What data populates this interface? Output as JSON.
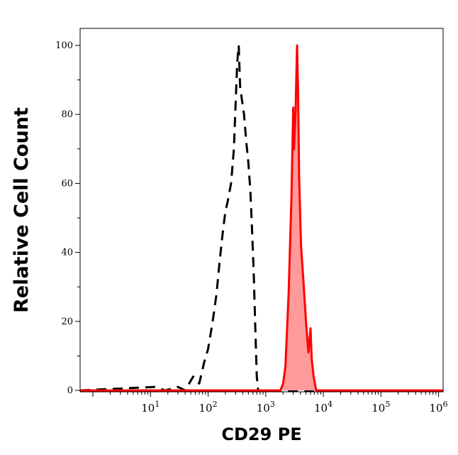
{
  "chart_data": {
    "type": "area",
    "xlabel": "CD29 PE",
    "ylabel": "Relative Cell Count",
    "xscale": "log",
    "xlim": [
      0.6,
      1200000
    ],
    "ylim": [
      0,
      100
    ],
    "x_ticks": [
      {
        "base": "10",
        "exp": "1"
      },
      {
        "base": "10",
        "exp": "2"
      },
      {
        "base": "10",
        "exp": "3"
      },
      {
        "base": "10",
        "exp": "4"
      },
      {
        "base": "10",
        "exp": "5"
      },
      {
        "base": "10",
        "exp": "6"
      }
    ],
    "y_ticks": [
      "0",
      "20",
      "40",
      "60",
      "80",
      "100"
    ],
    "y_values": [
      0,
      20,
      40,
      60,
      80,
      100
    ],
    "series": [
      {
        "style": "dashed",
        "color": "#000000",
        "fill": "none",
        "points": [
          [
            0.6,
            0
          ],
          [
            12,
            1
          ],
          [
            18,
            0
          ],
          [
            30,
            1
          ],
          [
            40,
            0
          ],
          [
            55,
            4
          ],
          [
            70,
            2
          ],
          [
            85,
            8
          ],
          [
            100,
            12
          ],
          [
            120,
            20
          ],
          [
            140,
            28
          ],
          [
            160,
            38
          ],
          [
            180,
            46
          ],
          [
            200,
            52
          ],
          [
            220,
            55
          ],
          [
            250,
            60
          ],
          [
            280,
            70
          ],
          [
            300,
            83
          ],
          [
            320,
            95
          ],
          [
            340,
            100
          ],
          [
            360,
            88
          ],
          [
            380,
            85
          ],
          [
            420,
            80
          ],
          [
            460,
            72
          ],
          [
            500,
            66
          ],
          [
            540,
            58
          ],
          [
            580,
            46
          ],
          [
            620,
            34
          ],
          [
            660,
            18
          ],
          [
            700,
            4
          ],
          [
            740,
            0
          ],
          [
            1200000,
            0
          ]
        ]
      },
      {
        "style": "solid",
        "color": "#ff0000",
        "fill": "#ff9a9a",
        "points": [
          [
            0.6,
            0
          ],
          [
            1800,
            0
          ],
          [
            2000,
            2
          ],
          [
            2200,
            7
          ],
          [
            2500,
            28
          ],
          [
            2800,
            56
          ],
          [
            3000,
            82
          ],
          [
            3100,
            70
          ],
          [
            3300,
            81
          ],
          [
            3500,
            100
          ],
          [
            3650,
            86
          ],
          [
            3800,
            62
          ],
          [
            4100,
            42
          ],
          [
            4500,
            32
          ],
          [
            5000,
            20
          ],
          [
            5500,
            11
          ],
          [
            6000,
            18
          ],
          [
            6300,
            9
          ],
          [
            6800,
            4
          ],
          [
            7500,
            0
          ],
          [
            1200000,
            0
          ]
        ]
      }
    ],
    "grid": false,
    "legend": "none"
  }
}
